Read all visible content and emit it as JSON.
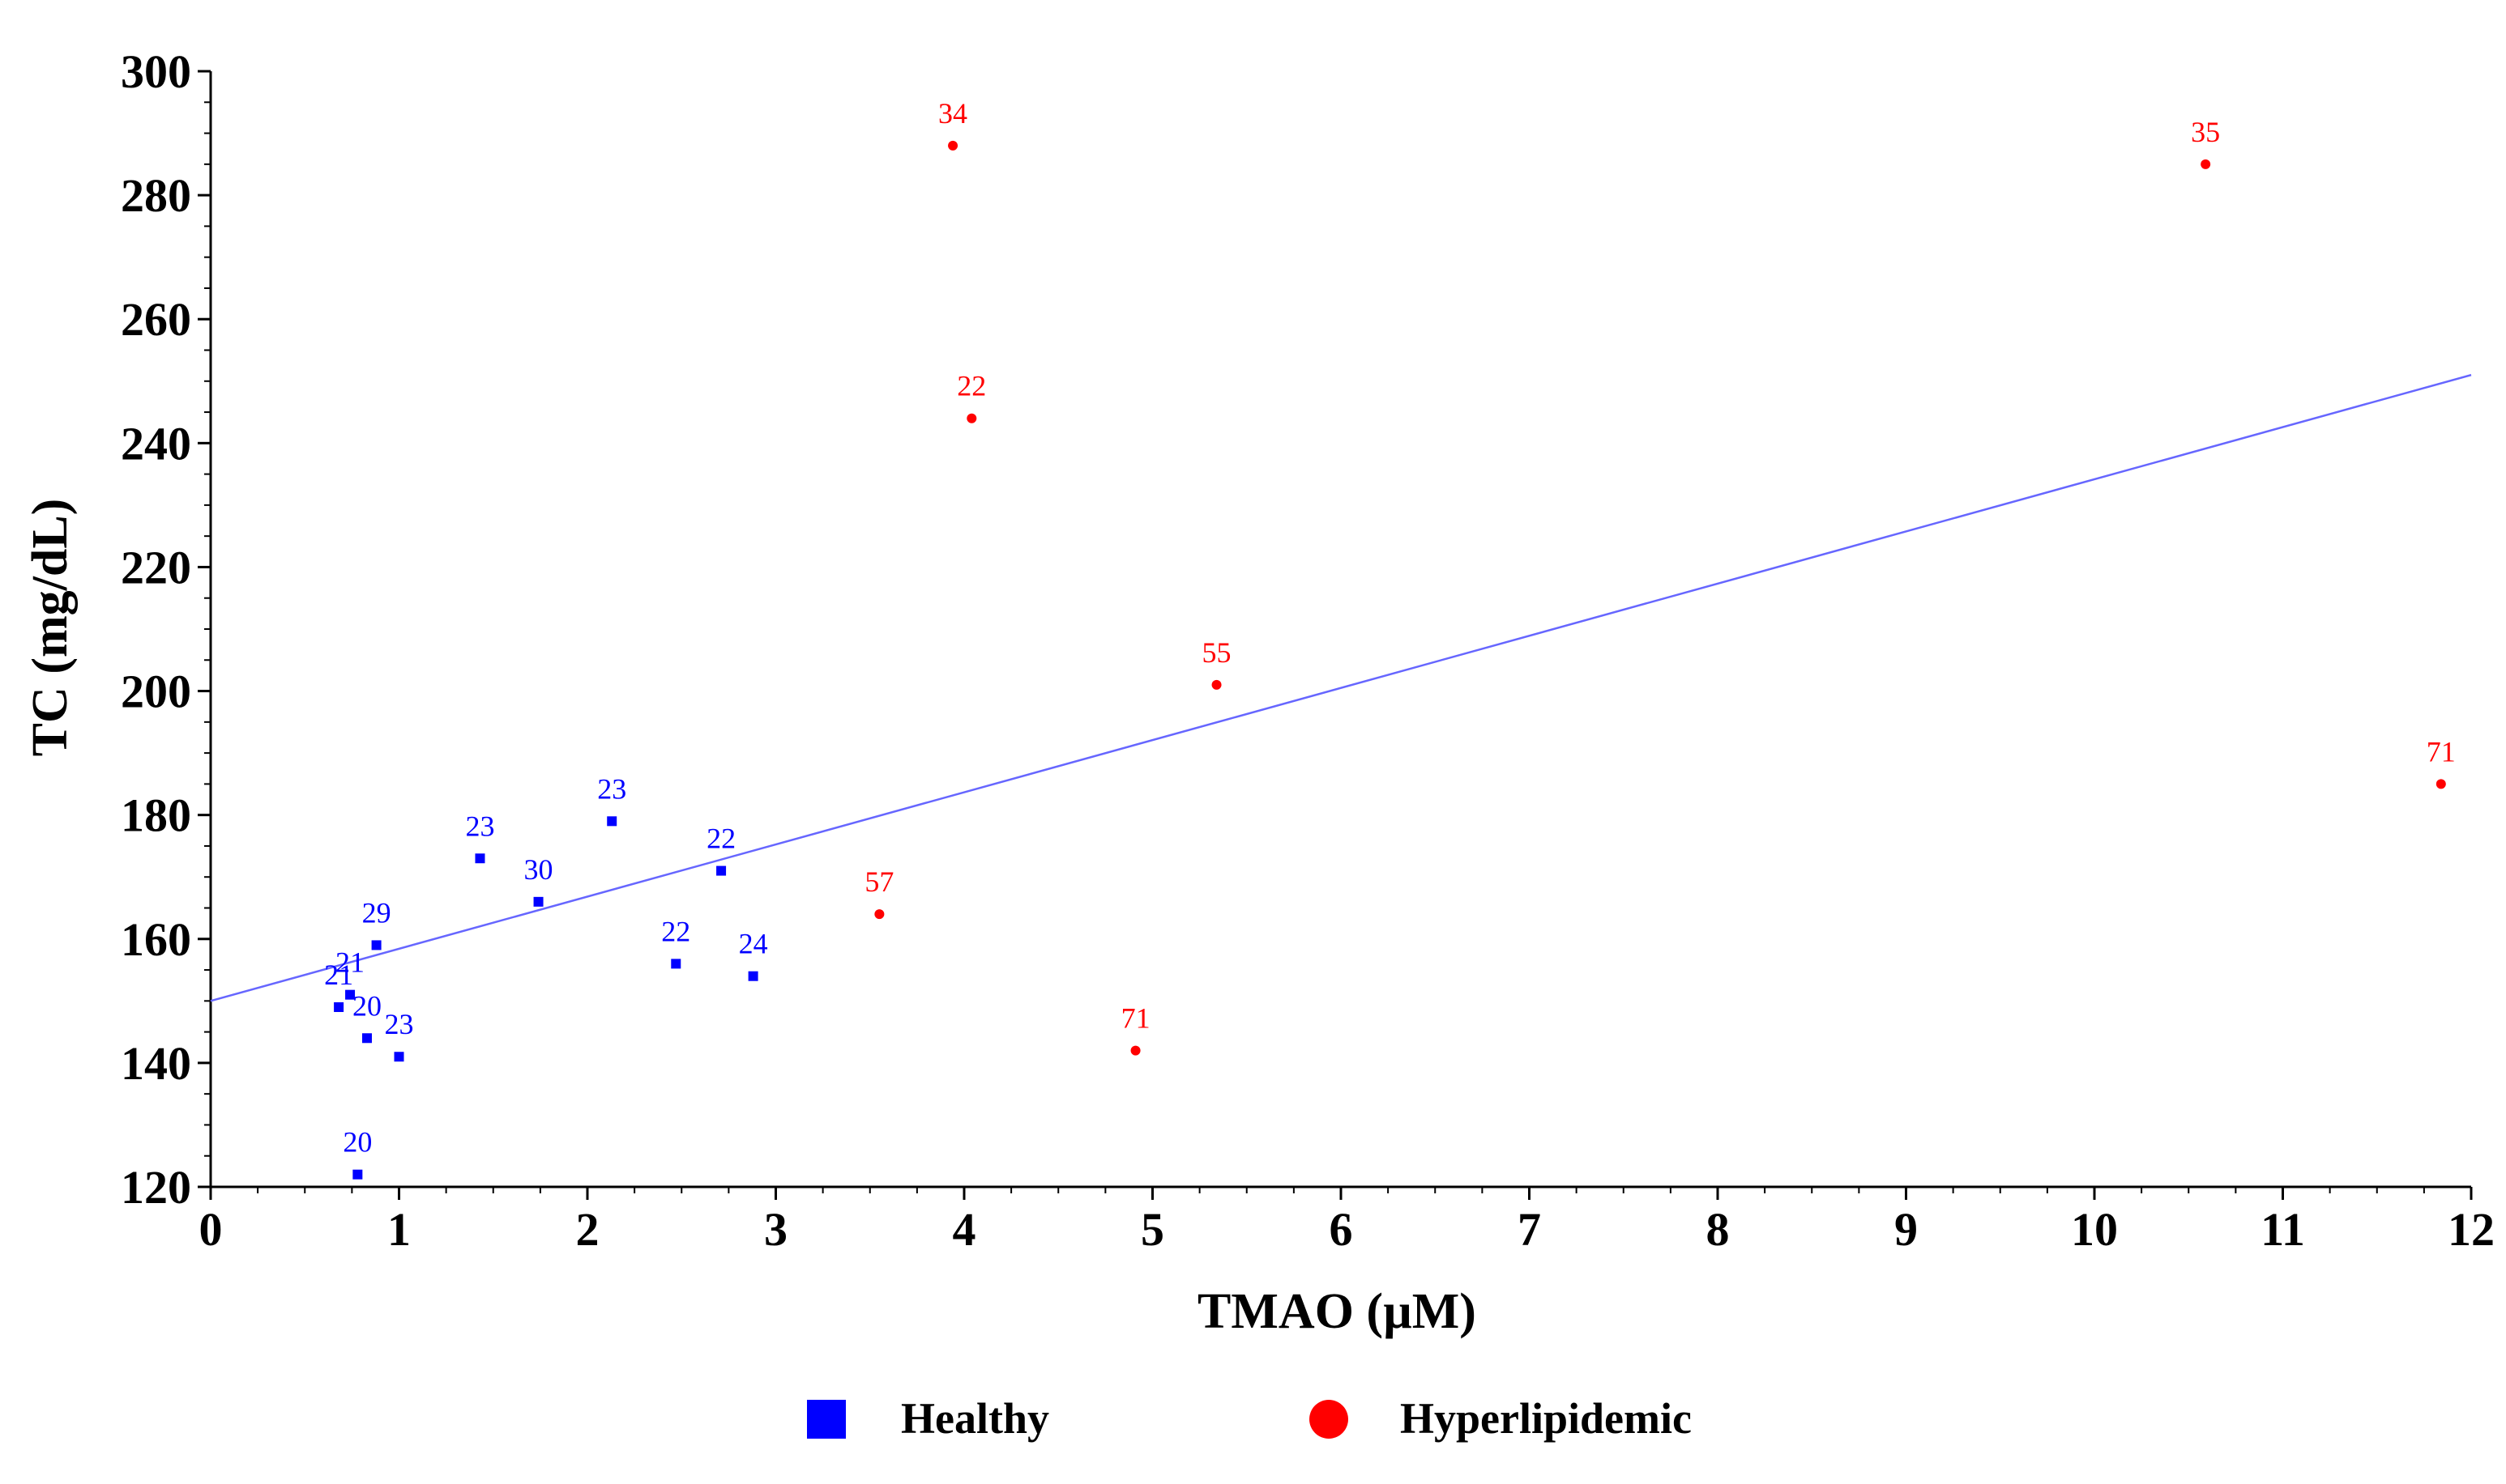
{
  "chart_data": {
    "type": "scatter",
    "xlabel": "TMAO (µM)",
    "ylabel": "TC (mg/dL)",
    "xlim": [
      0,
      12
    ],
    "ylim": [
      120,
      300
    ],
    "x_ticks": [
      "0",
      "1",
      "2",
      "3",
      "4",
      "5",
      "6",
      "7",
      "8",
      "9",
      "10",
      "11",
      "12"
    ],
    "y_ticks": [
      "120",
      "140",
      "160",
      "180",
      "200",
      "220",
      "240",
      "260",
      "280",
      "300"
    ],
    "grid": false,
    "legend_position": "bottom",
    "series": [
      {
        "name": "Healthy",
        "color": "#0000ff",
        "marker": "square",
        "points": [
          {
            "x": 0.68,
            "y": 149,
            "label": "21"
          },
          {
            "x": 0.74,
            "y": 151,
            "label": "21"
          },
          {
            "x": 0.88,
            "y": 159,
            "label": "29"
          },
          {
            "x": 0.83,
            "y": 144,
            "label": "20"
          },
          {
            "x": 1.0,
            "y": 141,
            "label": "23"
          },
          {
            "x": 0.78,
            "y": 122,
            "label": "20"
          },
          {
            "x": 1.43,
            "y": 173,
            "label": "23"
          },
          {
            "x": 1.74,
            "y": 166,
            "label": "30"
          },
          {
            "x": 2.13,
            "y": 179,
            "label": "23"
          },
          {
            "x": 2.71,
            "y": 171,
            "label": "22"
          },
          {
            "x": 2.47,
            "y": 156,
            "label": "22"
          },
          {
            "x": 2.88,
            "y": 154,
            "label": "24"
          }
        ]
      },
      {
        "name": "Hyperlipidemic",
        "color": "#ff0000",
        "marker": "circle",
        "points": [
          {
            "x": 3.94,
            "y": 288,
            "label": "34"
          },
          {
            "x": 4.04,
            "y": 244,
            "label": "22"
          },
          {
            "x": 5.34,
            "y": 201,
            "label": "55"
          },
          {
            "x": 3.55,
            "y": 164,
            "label": "57"
          },
          {
            "x": 4.91,
            "y": 142,
            "label": "71"
          },
          {
            "x": 10.59,
            "y": 285,
            "label": "35"
          },
          {
            "x": 11.84,
            "y": 185,
            "label": "71"
          }
        ]
      }
    ],
    "trendline": {
      "color": "#6666ff",
      "x": [
        0,
        12
      ],
      "y": [
        150,
        251
      ]
    }
  }
}
